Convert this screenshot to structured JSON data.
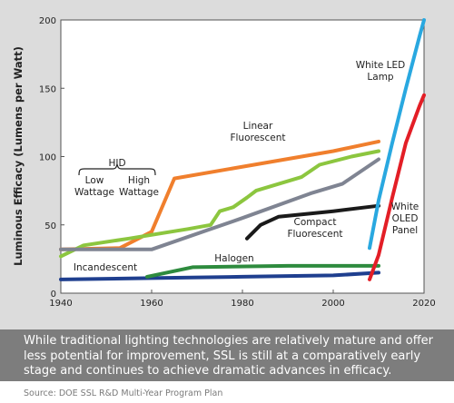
{
  "chart_data": {
    "type": "line",
    "ylabel": "Luminous Efficacy (Lumens per Watt)",
    "xlim": [
      1940,
      2020
    ],
    "ylim": [
      0,
      200
    ],
    "xticks": [
      "1940",
      "1960",
      "1980",
      "2000",
      "2020"
    ],
    "yticks": [
      "0",
      "50",
      "100",
      "150",
      "200"
    ],
    "grid": false,
    "series": [
      {
        "name": "Incandescent",
        "color": "#1f3f8f",
        "points": [
          [
            1940,
            10
          ],
          [
            1960,
            11
          ],
          [
            1980,
            12
          ],
          [
            2000,
            13
          ],
          [
            2010,
            15
          ]
        ]
      },
      {
        "name": "Halogen",
        "color": "#2e8b3e",
        "points": [
          [
            1959,
            12
          ],
          [
            1969,
            19
          ],
          [
            1990,
            20
          ],
          [
            2010,
            20
          ]
        ]
      },
      {
        "name": "HID",
        "color": "#f07f2d",
        "points": [
          [
            1940,
            32
          ],
          [
            1953,
            33
          ],
          [
            1960,
            45
          ],
          [
            1965,
            84
          ],
          [
            2000,
            104
          ],
          [
            2010,
            111
          ]
        ]
      },
      {
        "name": "Linear Fluorescent",
        "color": "#8cc63f",
        "points": [
          [
            1940,
            27
          ],
          [
            1945,
            35
          ],
          [
            1955,
            40
          ],
          [
            1968,
            47
          ],
          [
            1973,
            50
          ],
          [
            1975,
            60
          ],
          [
            1978,
            63
          ],
          [
            1981,
            70
          ],
          [
            1983,
            75
          ],
          [
            1993,
            85
          ],
          [
            1997,
            94
          ],
          [
            2004,
            100
          ],
          [
            2010,
            104
          ]
        ]
      },
      {
        "name": "",
        "color": "#7f8492",
        "points": [
          [
            1940,
            32
          ],
          [
            1960,
            32
          ],
          [
            1980,
            55
          ],
          [
            1995,
            73
          ],
          [
            2002,
            80
          ],
          [
            2010,
            98
          ]
        ]
      },
      {
        "name": "Compact Fluorescent",
        "color": "#1a1a1a",
        "points": [
          [
            1981,
            40
          ],
          [
            1984,
            50
          ],
          [
            1988,
            56
          ],
          [
            2000,
            60
          ],
          [
            2010,
            64
          ]
        ]
      },
      {
        "name": "White LED Lamp",
        "color": "#29a8e0",
        "points": [
          [
            2008,
            33
          ],
          [
            2010,
            68
          ],
          [
            2013,
            110
          ],
          [
            2016,
            150
          ],
          [
            2019,
            188
          ],
          [
            2020,
            200
          ]
        ]
      },
      {
        "name": "White OLED Panel",
        "color": "#e31e26",
        "points": [
          [
            2008,
            10
          ],
          [
            2010,
            28
          ],
          [
            2013,
            70
          ],
          [
            2016,
            110
          ],
          [
            2019,
            137
          ],
          [
            2020,
            145
          ]
        ]
      }
    ],
    "annotations": {
      "hid_group": "HID",
      "hid_low": [
        "Low",
        "Wattage"
      ],
      "hid_high": [
        "High",
        "Wattage"
      ],
      "linear_fluorescent": [
        "Linear",
        "Fluorescent"
      ],
      "compact_fluorescent": [
        "Compact",
        "Fluorescent"
      ],
      "halogen": "Halogen",
      "incandescent": "Incandescent",
      "white_led": [
        "White LED",
        "Lamp"
      ],
      "white_oled": [
        "White",
        "OLED",
        "Panel"
      ]
    }
  },
  "caption": "While traditional lighting technologies are relatively mature and offer less potential for improvement, SSL is still at a comparatively early stage and continues to achieve dramatic advances in efficacy.",
  "source": "Source: DOE SSL R&D Multi-Year Program Plan"
}
